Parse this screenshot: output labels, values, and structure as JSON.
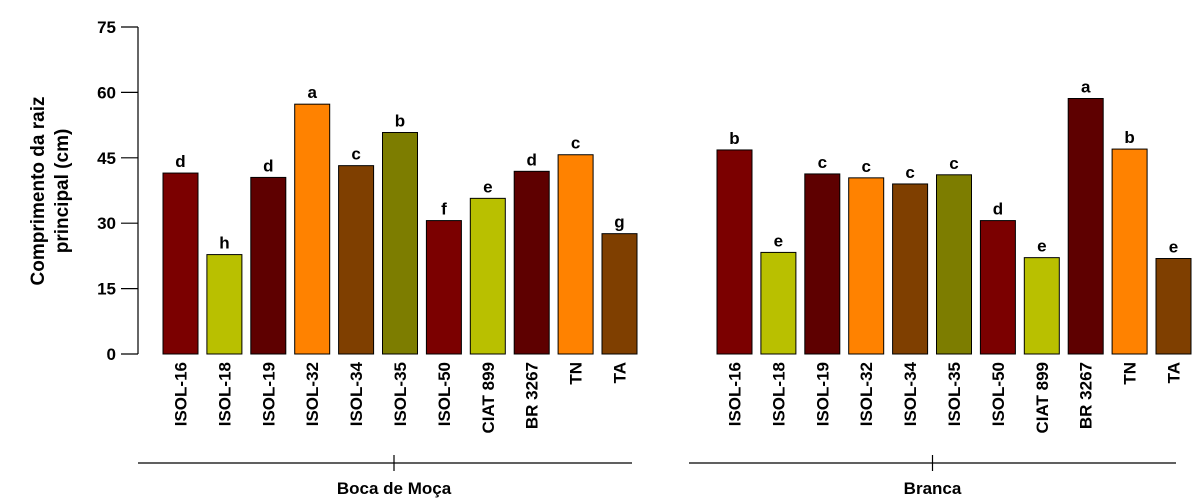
{
  "chart_data": {
    "type": "bar",
    "ylabel_lines": [
      "Comprimento da raiz",
      "principal (cm)"
    ],
    "ylim": [
      0,
      75
    ],
    "yticks": [
      "0",
      "15",
      "30",
      "45",
      "60",
      "75"
    ],
    "grid": false,
    "groups": [
      {
        "name": "Boca de Moça",
        "bars": [
          {
            "category": "ISOL-16",
            "value": 41.5,
            "letter": "d",
            "color": "#7b0000"
          },
          {
            "category": "ISOL-18",
            "value": 22.8,
            "letter": "h",
            "color": "#b9c000"
          },
          {
            "category": "ISOL-19",
            "value": 40.5,
            "letter": "d",
            "color": "#5e0000"
          },
          {
            "category": "ISOL-32",
            "value": 57.3,
            "letter": "a",
            "color": "#ff8200"
          },
          {
            "category": "ISOL-34",
            "value": 43.2,
            "letter": "c",
            "color": "#7f3f00"
          },
          {
            "category": "ISOL-35",
            "value": 50.8,
            "letter": "b",
            "color": "#7d7d00"
          },
          {
            "category": "ISOL-50",
            "value": 30.6,
            "letter": "f",
            "color": "#7b0000"
          },
          {
            "category": "CIAT 899",
            "value": 35.7,
            "letter": "e",
            "color": "#b9c000"
          },
          {
            "category": "BR 3267",
            "value": 41.9,
            "letter": "d",
            "color": "#5e0000"
          },
          {
            "category": "TN",
            "value": 45.7,
            "letter": "c",
            "color": "#ff8200"
          },
          {
            "category": "TA",
            "value": 27.6,
            "letter": "g",
            "color": "#7f3f00"
          }
        ]
      },
      {
        "name": "Branca",
        "bars": [
          {
            "category": "ISOL-16",
            "value": 46.8,
            "letter": "b",
            "color": "#7b0000"
          },
          {
            "category": "ISOL-18",
            "value": 23.3,
            "letter": "e",
            "color": "#b9c000"
          },
          {
            "category": "ISOL-19",
            "value": 41.3,
            "letter": "c",
            "color": "#5e0000"
          },
          {
            "category": "ISOL-32",
            "value": 40.4,
            "letter": "c",
            "color": "#ff8200"
          },
          {
            "category": "ISOL-34",
            "value": 39.0,
            "letter": "c",
            "color": "#7f3f00"
          },
          {
            "category": "ISOL-35",
            "value": 41.1,
            "letter": "c",
            "color": "#7d7d00"
          },
          {
            "category": "ISOL-50",
            "value": 30.6,
            "letter": "d",
            "color": "#7b0000"
          },
          {
            "category": "CIAT 899",
            "value": 22.1,
            "letter": "e",
            "color": "#b9c000"
          },
          {
            "category": "BR 3267",
            "value": 58.6,
            "letter": "a",
            "color": "#5e0000"
          },
          {
            "category": "TN",
            "value": 47.0,
            "letter": "b",
            "color": "#ff8200"
          },
          {
            "category": "TA",
            "value": 21.9,
            "letter": "e",
            "color": "#7f3f00"
          }
        ]
      }
    ]
  }
}
